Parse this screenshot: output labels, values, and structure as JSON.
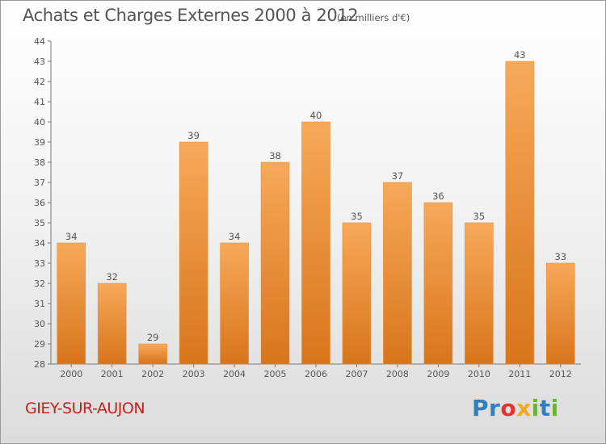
{
  "header": {
    "title": "Achats et Charges Externes 2000 à 2012",
    "subtitle": "(en milliers d'€)"
  },
  "footer": {
    "town": "GIEY-SUR-AUJON",
    "logo": {
      "letters": [
        "P",
        "r",
        "o",
        "x",
        "i",
        "t",
        "i"
      ],
      "colors": [
        "#2f7fc1",
        "#2f7fc1",
        "#e2342b",
        "#f5a623",
        "#6bb339",
        "#2f7fc1",
        "#6bb339"
      ]
    }
  },
  "chart_data": {
    "type": "bar",
    "title": "Achats et Charges Externes 2000 à 2012",
    "subtitle": "(en milliers d'€)",
    "categories": [
      "2000",
      "2001",
      "2002",
      "2003",
      "2004",
      "2005",
      "2006",
      "2007",
      "2008",
      "2009",
      "2010",
      "2011",
      "2012"
    ],
    "values": [
      34,
      32,
      29,
      39,
      34,
      38,
      40,
      35,
      37,
      36,
      35,
      43,
      33
    ],
    "data_labels": [
      "34",
      "32",
      "29",
      "39",
      "34",
      "38",
      "40",
      "35",
      "37",
      "36",
      "35",
      "43",
      "33"
    ],
    "ylim": [
      28,
      44
    ],
    "yticks": [
      28,
      29,
      30,
      31,
      32,
      33,
      34,
      35,
      36,
      37,
      38,
      39,
      40,
      41,
      42,
      43,
      44
    ],
    "ytick_labels": [
      "28",
      "29",
      "30",
      "31",
      "32",
      "33",
      "34",
      "35",
      "36",
      "37",
      "38",
      "39",
      "40",
      "41",
      "42",
      "43",
      "44"
    ],
    "grid": false,
    "colors": {
      "bar_light": "#f7a95a",
      "bar_dark": "#d8751c",
      "text": "#555555",
      "axis": "#777777"
    }
  }
}
